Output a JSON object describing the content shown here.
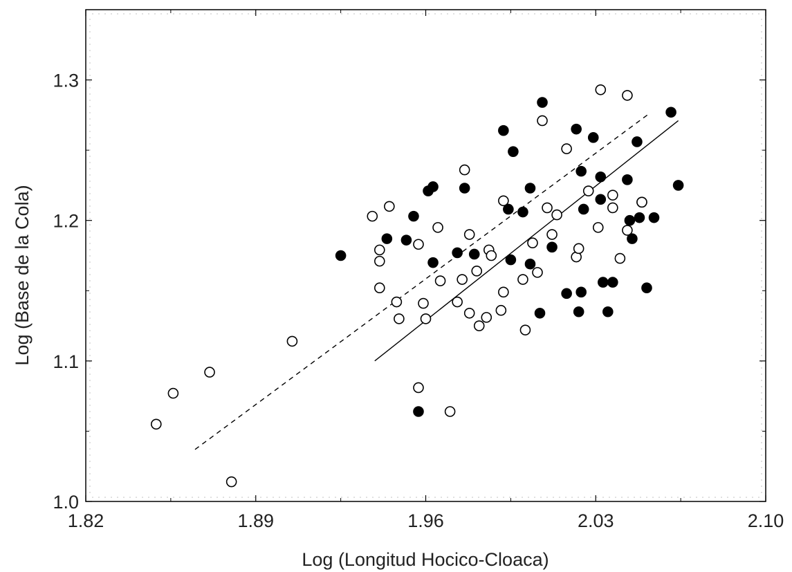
{
  "chart_data": {
    "type": "scatter",
    "title": "",
    "xlabel": "Log (Longitud Hocico-Cloaca)",
    "ylabel": "Log (Base de la Cola)",
    "xlim": [
      1.82,
      2.1
    ],
    "ylim": [
      1.0,
      1.35
    ],
    "x_ticks": [
      1.82,
      1.89,
      1.96,
      2.03,
      2.1
    ],
    "x_tick_labels": [
      "1.82",
      "1.89",
      "1.96",
      "2.03",
      "2.10"
    ],
    "y_ticks": [
      1.0,
      1.1,
      1.2,
      1.3
    ],
    "y_tick_labels": [
      "1.0",
      "1.1",
      "1.2",
      "1.3"
    ],
    "grid": "dotted-edges",
    "legend": "none",
    "series": [
      {
        "marker": "filled-circle",
        "color": "#000000",
        "points": [
          [
            1.925,
            1.175
          ],
          [
            1.944,
            1.187
          ],
          [
            1.952,
            1.186
          ],
          [
            1.955,
            1.203
          ],
          [
            1.961,
            1.221
          ],
          [
            1.963,
            1.224
          ],
          [
            1.963,
            1.17
          ],
          [
            1.957,
            1.064
          ],
          [
            1.973,
            1.177
          ],
          [
            1.976,
            1.223
          ],
          [
            1.98,
            1.176
          ],
          [
            1.992,
            1.264
          ],
          [
            1.994,
            1.208
          ],
          [
            1.995,
            1.172
          ],
          [
            1.996,
            1.249
          ],
          [
            2.0,
            1.206
          ],
          [
            2.003,
            1.223
          ],
          [
            2.003,
            1.169
          ],
          [
            2.007,
            1.134
          ],
          [
            2.008,
            1.284
          ],
          [
            2.012,
            1.181
          ],
          [
            2.018,
            1.148
          ],
          [
            2.022,
            1.265
          ],
          [
            2.023,
            1.135
          ],
          [
            2.024,
            1.235
          ],
          [
            2.024,
            1.149
          ],
          [
            2.025,
            1.208
          ],
          [
            2.029,
            1.259
          ],
          [
            2.032,
            1.231
          ],
          [
            2.032,
            1.215
          ],
          [
            2.033,
            1.156
          ],
          [
            2.035,
            1.135
          ],
          [
            2.037,
            1.156
          ],
          [
            2.043,
            1.229
          ],
          [
            2.044,
            1.2
          ],
          [
            2.045,
            1.187
          ],
          [
            2.047,
            1.256
          ],
          [
            2.048,
            1.202
          ],
          [
            2.049,
            1.213
          ],
          [
            2.051,
            1.152
          ],
          [
            2.054,
            1.202
          ],
          [
            2.061,
            1.277
          ],
          [
            2.064,
            1.225
          ]
        ]
      },
      {
        "marker": "open-circle",
        "color": "#000000",
        "points": [
          [
            1.849,
            1.055
          ],
          [
            1.856,
            1.077
          ],
          [
            1.871,
            1.092
          ],
          [
            1.88,
            1.014
          ],
          [
            1.905,
            1.114
          ],
          [
            1.938,
            1.203
          ],
          [
            1.941,
            1.171
          ],
          [
            1.941,
            1.179
          ],
          [
            1.941,
            1.152
          ],
          [
            1.945,
            1.21
          ],
          [
            1.948,
            1.142
          ],
          [
            1.949,
            1.13
          ],
          [
            1.957,
            1.183
          ],
          [
            1.957,
            1.081
          ],
          [
            1.959,
            1.141
          ],
          [
            1.96,
            1.13
          ],
          [
            1.965,
            1.195
          ],
          [
            1.966,
            1.157
          ],
          [
            1.97,
            1.064
          ],
          [
            1.973,
            1.142
          ],
          [
            1.975,
            1.158
          ],
          [
            1.976,
            1.236
          ],
          [
            1.978,
            1.19
          ],
          [
            1.978,
            1.134
          ],
          [
            1.981,
            1.164
          ],
          [
            1.982,
            1.125
          ],
          [
            1.985,
            1.131
          ],
          [
            1.986,
            1.179
          ],
          [
            1.987,
            1.175
          ],
          [
            1.991,
            1.136
          ],
          [
            1.992,
            1.149
          ],
          [
            1.992,
            1.214
          ],
          [
            2.0,
            1.158
          ],
          [
            2.001,
            1.122
          ],
          [
            2.006,
            1.163
          ],
          [
            2.004,
            1.184
          ],
          [
            2.008,
            1.271
          ],
          [
            2.01,
            1.209
          ],
          [
            2.012,
            1.19
          ],
          [
            2.014,
            1.204
          ],
          [
            2.018,
            1.251
          ],
          [
            2.022,
            1.174
          ],
          [
            2.023,
            1.18
          ],
          [
            2.027,
            1.221
          ],
          [
            2.031,
            1.195
          ],
          [
            2.032,
            1.293
          ],
          [
            2.037,
            1.218
          ],
          [
            2.037,
            1.209
          ],
          [
            2.04,
            1.173
          ],
          [
            2.043,
            1.289
          ],
          [
            2.043,
            1.193
          ],
          [
            2.049,
            1.213
          ]
        ]
      }
    ],
    "fit_lines": [
      {
        "style": "solid",
        "x": [
          1.939,
          2.064
        ],
        "y": [
          1.1,
          1.271
        ]
      },
      {
        "style": "dashed",
        "x": [
          1.865,
          2.052
        ],
        "y": [
          1.037,
          1.276
        ]
      }
    ]
  }
}
